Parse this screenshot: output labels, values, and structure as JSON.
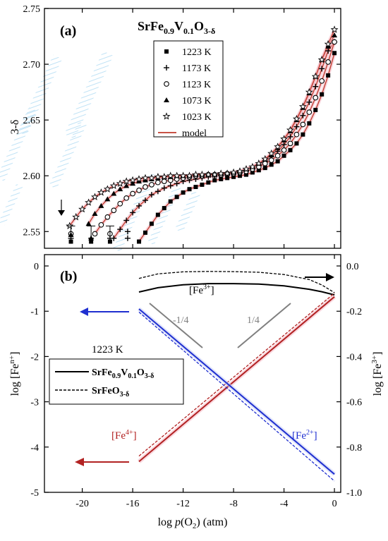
{
  "chart_data": [
    {
      "type": "scatter",
      "panel_label": "(a)",
      "title_parts": {
        "base": "SrFe",
        "sub1": "0.9",
        "mid": "V",
        "sub2": "0.1",
        "mid2": "O",
        "sub3": "3-δ"
      },
      "ylabel": "3-δ",
      "xlim": [
        -23,
        0.5
      ],
      "ylim": [
        2.535,
        2.75
      ],
      "yticks": [
        "2.55",
        "2.60",
        "2.65",
        "2.70",
        "2.75"
      ],
      "ytick_values": [
        2.55,
        2.6,
        2.65,
        2.7,
        2.75
      ],
      "legend": {
        "placement": "top-center"
      },
      "model_color": "#c0392b",
      "series": [
        {
          "name": "1223 K",
          "marker": "square",
          "x": [
            -15.5,
            -15,
            -14.5,
            -14,
            -13.5,
            -13,
            -12.5,
            -12,
            -11.5,
            -11,
            -10.5,
            -10,
            -9.5,
            -9,
            -8.5,
            -8,
            -7.5,
            -7,
            -6.5,
            -6,
            -5.5,
            -5,
            -4.5,
            -4,
            -3.5,
            -3,
            -2.5,
            -2,
            -1.5,
            -1,
            -0.5,
            0
          ],
          "y": [
            2.541,
            2.549,
            2.557,
            2.565,
            2.571,
            2.577,
            2.581,
            2.585,
            2.588,
            2.59,
            2.592,
            2.594,
            2.596,
            2.597,
            2.598,
            2.599,
            2.6,
            2.601,
            2.603,
            2.605,
            2.607,
            2.61,
            2.613,
            2.618,
            2.623,
            2.629,
            2.637,
            2.647,
            2.659,
            2.673,
            2.69,
            2.71
          ]
        },
        {
          "name": "1173 K",
          "marker": "plus",
          "x": [
            -17.5,
            -17,
            -16.5,
            -16,
            -15.5,
            -15,
            -14.5,
            -14,
            -13.5,
            -13,
            -12.5,
            -12,
            -11.5,
            -11,
            -10.5,
            -10,
            -9.5,
            -9,
            -8.5,
            -8,
            -7.5,
            -7,
            -6.5,
            -6,
            -5.5,
            -5,
            -4.5,
            -4,
            -3.5,
            -3,
            -2.5,
            -2,
            -1.5,
            -1,
            -0.5,
            0
          ],
          "y": [
            2.544,
            2.552,
            2.56,
            2.567,
            2.573,
            2.578,
            2.583,
            2.586,
            2.589,
            2.591,
            2.593,
            2.595,
            2.596,
            2.597,
            2.598,
            2.599,
            2.6,
            2.6,
            2.601,
            2.602,
            2.603,
            2.605,
            2.607,
            2.61,
            2.613,
            2.617,
            2.622,
            2.628,
            2.635,
            2.644,
            2.654,
            2.666,
            2.68,
            2.696,
            2.712,
            2.72
          ]
        },
        {
          "name": "1123 K",
          "marker": "circle",
          "x": [
            -19,
            -18.5,
            -18,
            -17.5,
            -17,
            -16.5,
            -16,
            -15.5,
            -15,
            -14.5,
            -14,
            -13.5,
            -13,
            -12.5,
            -12,
            -11.5,
            -11,
            -10.5,
            -10,
            -9.5,
            -9,
            -8.5,
            -8,
            -7.5,
            -7,
            -6.5,
            -6,
            -5.5,
            -5,
            -4.5,
            -4,
            -3.5,
            -3,
            -2.5,
            -2,
            -1.5,
            -1,
            -0.5,
            0
          ],
          "y": [
            2.548,
            2.556,
            2.563,
            2.569,
            2.575,
            2.58,
            2.584,
            2.587,
            2.59,
            2.592,
            2.594,
            2.595,
            2.596,
            2.597,
            2.598,
            2.599,
            2.6,
            2.6,
            2.601,
            2.601,
            2.601,
            2.602,
            2.602,
            2.603,
            2.604,
            2.606,
            2.608,
            2.611,
            2.614,
            2.618,
            2.623,
            2.629,
            2.637,
            2.646,
            2.657,
            2.67,
            2.685,
            2.702,
            2.72
          ]
        },
        {
          "name": "1073 K",
          "marker": "triangle",
          "x": [
            -19.5,
            -19,
            -18.5,
            -18,
            -17.5,
            -17,
            -16.5,
            -16,
            -15.5,
            -15,
            -14.5,
            -14,
            -13.5,
            -13,
            -12.5,
            -12,
            -11.5,
            -11,
            -10.5,
            -10,
            -9.5,
            -9,
            -8.5,
            -8,
            -7.5,
            -7,
            -6.5,
            -6,
            -5.5,
            -5,
            -4.5,
            -4,
            -3.5,
            -3,
            -2.5,
            -2,
            -1.5,
            -1,
            -0.5,
            0
          ],
          "y": [
            2.557,
            2.566,
            2.573,
            2.579,
            2.584,
            2.588,
            2.591,
            2.593,
            2.595,
            2.596,
            2.597,
            2.598,
            2.599,
            2.599,
            2.6,
            2.6,
            2.6,
            2.601,
            2.601,
            2.601,
            2.601,
            2.602,
            2.602,
            2.603,
            2.604,
            2.606,
            2.608,
            2.611,
            2.615,
            2.619,
            2.625,
            2.632,
            2.64,
            2.65,
            2.661,
            2.674,
            2.689,
            2.704,
            2.716,
            2.726
          ]
        },
        {
          "name": "1023 K",
          "marker": "star",
          "x": [
            -21,
            -20.5,
            -20,
            -19.5,
            -19,
            -18.5,
            -18,
            -17.5,
            -17,
            -16.5,
            -16,
            -15.5,
            -15,
            -14.5,
            -14,
            -13.5,
            -13,
            -12.5,
            -12,
            -11.5,
            -11,
            -10.5,
            -10,
            -9.5,
            -9,
            -8.5,
            -8,
            -7.5,
            -7,
            -6.5,
            -6,
            -5.5,
            -5,
            -4.5,
            -4,
            -3.5,
            -3,
            -2.5,
            -2,
            -1.5,
            -1,
            -0.5,
            0
          ],
          "y": [
            2.555,
            2.563,
            2.57,
            2.576,
            2.581,
            2.585,
            2.588,
            2.591,
            2.593,
            2.595,
            2.596,
            2.597,
            2.598,
            2.598,
            2.599,
            2.599,
            2.6,
            2.6,
            2.6,
            2.6,
            2.601,
            2.601,
            2.601,
            2.601,
            2.602,
            2.602,
            2.603,
            2.604,
            2.606,
            2.608,
            2.611,
            2.615,
            2.62,
            2.626,
            2.633,
            2.641,
            2.651,
            2.662,
            2.675,
            2.689,
            2.704,
            2.718,
            2.731
          ]
        }
      ],
      "model_label": "model",
      "low_pressure_points": [
        {
          "x": -20.9,
          "y": 2.541,
          "marker": "square"
        },
        {
          "x": -20.9,
          "y": 2.544,
          "marker": "plus"
        },
        {
          "x": -20.9,
          "y": 2.548,
          "marker": "circle"
        },
        {
          "x": -20.9,
          "y": 2.547,
          "marker": "triangle"
        },
        {
          "x": -19.3,
          "y": 2.541,
          "marker": "square"
        },
        {
          "x": -19.3,
          "y": 2.544,
          "marker": "plus"
        },
        {
          "x": -19.3,
          "y": 2.544,
          "marker": "triangle"
        },
        {
          "x": -17.8,
          "y": 2.541,
          "marker": "square"
        },
        {
          "x": -17.8,
          "y": 2.544,
          "marker": "plus"
        },
        {
          "x": -17.8,
          "y": 2.548,
          "marker": "circle"
        },
        {
          "x": -16.4,
          "y": 2.544,
          "marker": "plus"
        },
        {
          "x": -16.4,
          "y": 2.55,
          "marker": "plus"
        }
      ]
    },
    {
      "type": "line",
      "panel_label": "(b)",
      "xlabel_parts": {
        "pre": "log ",
        "italic": "p",
        "post": "(O",
        "sub": "2",
        "end": ") (atm)"
      },
      "ylabel_left": "log [Fe",
      "ylabel_left_sup": "n+",
      "ylabel_left_end": "]",
      "ylabel_right": "log [Fe",
      "ylabel_right_sup": "3+",
      "ylabel_right_end": "]",
      "xlim": [
        -23,
        0.5
      ],
      "ylim_left": [
        -5,
        0.25
      ],
      "ylim_right": [
        -1.0,
        0.05
      ],
      "xticks": [
        "-20",
        "-16",
        "-12",
        "-8",
        "-4",
        "0"
      ],
      "xtick_values": [
        -20,
        -16,
        -12,
        -8,
        -4,
        0
      ],
      "yticks_left": [
        "0",
        "-1",
        "-2",
        "-3",
        "-4",
        "-5"
      ],
      "ytick_values_left": [
        0,
        -1,
        -2,
        -3,
        -4,
        -5
      ],
      "yticks_right": [
        "0.0",
        "-0.2",
        "-0.4",
        "-0.6",
        "-0.8",
        "-1.0"
      ],
      "ytick_values_right": [
        0,
        -0.2,
        -0.4,
        -0.6,
        -0.8,
        -1.0
      ],
      "temperature_label": "1223 K",
      "legend_solid": {
        "base": "SrFe",
        "sub1": "0.9",
        "mid": "V",
        "sub2": "0.1",
        "mid2": "O",
        "sub3": "3-δ"
      },
      "legend_dashed": {
        "base": "SrFeO",
        "sub": "3-δ"
      },
      "annotations": {
        "fe3": {
          "base": "[Fe",
          "sup": "3+",
          "end": "]"
        },
        "fe4": {
          "base": "[Fe",
          "sup": "4+",
          "end": "]"
        },
        "fe2": {
          "base": "[Fe",
          "sup": "2+",
          "end": "]"
        },
        "slope_neg": "-1/4",
        "slope_pos": "1/4"
      },
      "colors": {
        "fe4": "#b22222",
        "fe2": "#1f2fd0",
        "fe3": "#000000",
        "slope": "#808080"
      },
      "series": [
        {
          "name": "[Fe3+] SrFe0.9V0.1O3-δ",
          "axis": "right",
          "style": "solid",
          "color": "#000000",
          "x": [
            -15.5,
            -14,
            -12,
            -10,
            -8,
            -6,
            -4,
            -2,
            -1,
            0
          ],
          "y": [
            -0.115,
            -0.096,
            -0.083,
            -0.078,
            -0.078,
            -0.08,
            -0.088,
            -0.103,
            -0.114,
            -0.128
          ]
        },
        {
          "name": "[Fe3+] SrFeO3-δ",
          "axis": "right",
          "style": "dashed",
          "color": "#000000",
          "x": [
            -15.5,
            -14,
            -12,
            -10,
            -8,
            -6,
            -4,
            -2,
            -1,
            0
          ],
          "y": [
            -0.055,
            -0.035,
            -0.026,
            -0.024,
            -0.025,
            -0.028,
            -0.038,
            -0.06,
            -0.084,
            -0.118
          ]
        },
        {
          "name": "[Fe4+] SrFe0.9V0.1O3-δ",
          "axis": "left",
          "style": "solid",
          "color": "#b22222",
          "x": [
            -15.5,
            0
          ],
          "y": [
            -4.32,
            -0.68
          ]
        },
        {
          "name": "[Fe4+] SrFeO3-δ",
          "axis": "left",
          "style": "dashed",
          "color": "#b22222",
          "x": [
            -15.5,
            0
          ],
          "y": [
            -4.2,
            -0.6
          ]
        },
        {
          "name": "[Fe2+] SrFe0.9V0.1O3-δ",
          "axis": "left",
          "style": "solid",
          "color": "#1f2fd0",
          "x": [
            -15.5,
            0
          ],
          "y": [
            -0.95,
            -4.6
          ]
        },
        {
          "name": "[Fe2+] SrFeO3-δ",
          "axis": "left",
          "style": "dashed",
          "color": "#1f2fd0",
          "x": [
            -15.5,
            0
          ],
          "y": [
            -1.02,
            -4.75
          ]
        }
      ]
    }
  ]
}
